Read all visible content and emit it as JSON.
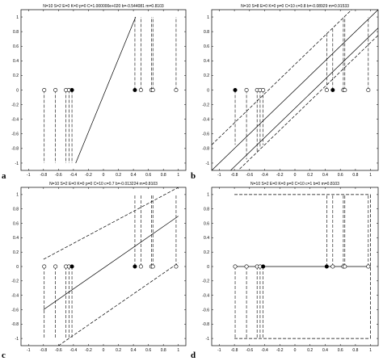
{
  "chart_data": [
    {
      "type": "line",
      "panel_label": "a",
      "title": "N=10 S=2 E=0 K=0 p=0 C=1.000000e+020 b=-0.544081 m=0.8103",
      "xlim": [
        -1.1,
        1.1
      ],
      "ylim": [
        -1.1,
        1.1
      ],
      "xticks": [
        "-1",
        "-0.8",
        "-0.6",
        "-0.4",
        "-0.2",
        "0",
        "0.2",
        "0.4",
        "0.6",
        "0.8",
        "1"
      ],
      "yticks": [
        "-1",
        "-0.8",
        "-0.6",
        "-0.4",
        "-0.2",
        "0",
        "0.2",
        "0.4",
        "0.6",
        "0.8",
        "1"
      ],
      "grid": false,
      "lines": [
        {
          "style": "solid",
          "x": [
            -0.37,
            0.43
          ],
          "y": [
            -1.0,
            1.0
          ]
        }
      ],
      "points": [
        {
          "x": -0.79,
          "y": 0,
          "filled": false,
          "stem_to": -1.0
        },
        {
          "x": -0.64,
          "y": 0,
          "filled": false,
          "stem_to": -1.0
        },
        {
          "x": -0.5,
          "y": 0,
          "filled": false,
          "stem_to": -1.0
        },
        {
          "x": -0.46,
          "y": 0,
          "filled": false,
          "stem_to": -1.0
        },
        {
          "x": -0.42,
          "y": 0,
          "filled": true,
          "stem_to": -1.0
        },
        {
          "x": 0.42,
          "y": 0,
          "filled": true,
          "stem_to": 1.0
        },
        {
          "x": 0.5,
          "y": 0,
          "filled": false,
          "stem_to": 1.0
        },
        {
          "x": 0.64,
          "y": 0,
          "filled": false,
          "stem_to": 1.0
        },
        {
          "x": 0.66,
          "y": 0,
          "filled": false,
          "stem_to": 1.0
        },
        {
          "x": 0.97,
          "y": 0,
          "filled": false,
          "stem_to": 1.0
        }
      ]
    },
    {
      "type": "line",
      "panel_label": "b",
      "title": "N=10 S=8 E=0 K=0 p=0 C=10 c=0.8 b=-0.08929 m=0.91533",
      "xlim": [
        -1.1,
        1.1
      ],
      "ylim": [
        -1.1,
        1.1
      ],
      "xticks": [
        "-1",
        "-0.8",
        "-0.6",
        "-0.4",
        "-0.2",
        "0",
        "0.2",
        "0.4",
        "0.6",
        "0.8",
        "1"
      ],
      "yticks": [
        "-1",
        "-0.8",
        "-0.6",
        "-0.4",
        "-0.2",
        "0",
        "0.2",
        "0.4",
        "0.6",
        "0.8",
        "1"
      ],
      "grid": false,
      "lines": [
        {
          "style": "solid",
          "x": [
            -1.1,
            1.1
          ],
          "y": [
            -1.1,
            1.1
          ]
        },
        {
          "style": "dashed",
          "x": [
            -1.1,
            1.1
          ],
          "y": [
            -0.75,
            1.45
          ]
        },
        {
          "style": "dashed",
          "x": [
            -1.1,
            1.1
          ],
          "y": [
            -1.45,
            0.75
          ]
        },
        {
          "style": "solid",
          "x": [
            -0.85,
            1.1
          ],
          "y": [
            -1.1,
            0.85
          ]
        }
      ],
      "points": [
        {
          "x": -0.79,
          "y": 0,
          "filled": true,
          "stem_to": -0.75
        },
        {
          "x": -0.64,
          "y": 0,
          "filled": false,
          "stem_to": -0.95
        },
        {
          "x": -0.5,
          "y": 0,
          "filled": false,
          "stem_to": -0.85
        },
        {
          "x": -0.46,
          "y": 0,
          "filled": false,
          "stem_to": -0.8
        },
        {
          "x": -0.42,
          "y": 0,
          "filled": false,
          "stem_to": -0.75
        },
        {
          "x": 0.42,
          "y": 0,
          "filled": false,
          "stem_to": 0.8
        },
        {
          "x": 0.5,
          "y": 0,
          "filled": true,
          "stem_to": 0.85
        },
        {
          "x": 0.64,
          "y": 0,
          "filled": false,
          "stem_to": 1.0
        },
        {
          "x": 0.66,
          "y": 0,
          "filled": false,
          "stem_to": 1.0
        },
        {
          "x": 0.97,
          "y": 0,
          "filled": false,
          "stem_to": 1.0
        }
      ]
    },
    {
      "type": "line",
      "panel_label": "c",
      "title": "N=10 S=2 E=0 K=0 p=0 C=10 c=0.7 b=-0.013224 m=0.8103",
      "xlim": [
        -1.1,
        1.1
      ],
      "ylim": [
        -1.1,
        1.1
      ],
      "xticks": [
        "-1",
        "-0.8",
        "-0.6",
        "-0.4",
        "-0.2",
        "0",
        "0.2",
        "0.4",
        "0.6",
        "0.8",
        "1"
      ],
      "yticks": [
        "-1",
        "-0.8",
        "-0.6",
        "-0.4",
        "-0.2",
        "0",
        "0.2",
        "0.4",
        "0.6",
        "0.8",
        "1"
      ],
      "grid": false,
      "lines": [
        {
          "style": "solid",
          "x": [
            -0.8,
            1.0
          ],
          "y": [
            -0.6,
            0.7
          ]
        },
        {
          "style": "dashed",
          "x": [
            -0.8,
            1.0
          ],
          "y": [
            0.1,
            1.1
          ]
        },
        {
          "style": "dashed",
          "x": [
            -0.6,
            1.0
          ],
          "y": [
            -1.1,
            0.05
          ]
        }
      ],
      "points": [
        {
          "x": -0.79,
          "y": 0,
          "filled": false,
          "stem_to": -1.0
        },
        {
          "x": -0.64,
          "y": 0,
          "filled": false,
          "stem_to": -1.0
        },
        {
          "x": -0.5,
          "y": 0,
          "filled": false,
          "stem_to": -1.0
        },
        {
          "x": -0.46,
          "y": 0,
          "filled": false,
          "stem_to": -1.0
        },
        {
          "x": -0.42,
          "y": 0,
          "filled": true,
          "stem_to": -1.0
        },
        {
          "x": 0.42,
          "y": 0,
          "filled": true,
          "stem_to": 1.0
        },
        {
          "x": 0.5,
          "y": 0,
          "filled": false,
          "stem_to": 1.0
        },
        {
          "x": 0.64,
          "y": 0,
          "filled": false,
          "stem_to": 1.0
        },
        {
          "x": 0.66,
          "y": 0,
          "filled": false,
          "stem_to": 1.0
        },
        {
          "x": 0.97,
          "y": 0,
          "filled": false,
          "stem_to": 1.0
        }
      ]
    },
    {
      "type": "line",
      "panel_label": "d",
      "title": "N=10 S=2 E=0 K=0 p=0 C=10 c=1 b=0 m=0.8103",
      "xlim": [
        -1.1,
        1.1
      ],
      "ylim": [
        -1.1,
        1.1
      ],
      "xticks": [
        "-1",
        "-0.8",
        "-0.6",
        "-0.4",
        "-0.2",
        "0",
        "0.2",
        "0.4",
        "0.6",
        "0.8",
        "1"
      ],
      "yticks": [
        "-1",
        "-0.8",
        "-0.6",
        "-0.4",
        "-0.2",
        "0",
        "0.2",
        "0.4",
        "0.6",
        "0.8",
        "1"
      ],
      "grid": false,
      "lines": [
        {
          "style": "solid",
          "x": [
            -0.8,
            -0.42
          ],
          "y": [
            0,
            0
          ]
        },
        {
          "style": "solid",
          "x": [
            -0.42,
            0.42
          ],
          "y": [
            0,
            0
          ]
        },
        {
          "style": "solid",
          "x": [
            0.42,
            1.0
          ],
          "y": [
            0,
            0
          ]
        },
        {
          "style": "dashed",
          "x": [
            -0.8,
            1.0
          ],
          "y": [
            1.0,
            1.0
          ]
        },
        {
          "style": "dashed",
          "x": [
            -0.8,
            1.0
          ],
          "y": [
            -1.0,
            -1.0
          ]
        },
        {
          "style": "dashed",
          "x": [
            1.0,
            1.0
          ],
          "y": [
            -1.0,
            1.0
          ]
        }
      ],
      "points": [
        {
          "x": -0.79,
          "y": 0,
          "filled": false,
          "stem_to": -1.0
        },
        {
          "x": -0.64,
          "y": 0,
          "filled": false,
          "stem_to": -1.0
        },
        {
          "x": -0.5,
          "y": 0,
          "filled": false,
          "stem_to": -1.0
        },
        {
          "x": -0.46,
          "y": 0,
          "filled": false,
          "stem_to": -1.0
        },
        {
          "x": -0.42,
          "y": 0,
          "filled": true,
          "stem_to": -1.0
        },
        {
          "x": 0.42,
          "y": 0,
          "filled": true,
          "stem_to": 1.0
        },
        {
          "x": 0.5,
          "y": 0,
          "filled": false,
          "stem_to": 1.0
        },
        {
          "x": 0.64,
          "y": 0,
          "filled": false,
          "stem_to": 1.0
        },
        {
          "x": 0.66,
          "y": 0,
          "filled": false,
          "stem_to": 1.0
        },
        {
          "x": 0.97,
          "y": 0,
          "filled": false,
          "stem_to": 1.0
        }
      ]
    }
  ]
}
